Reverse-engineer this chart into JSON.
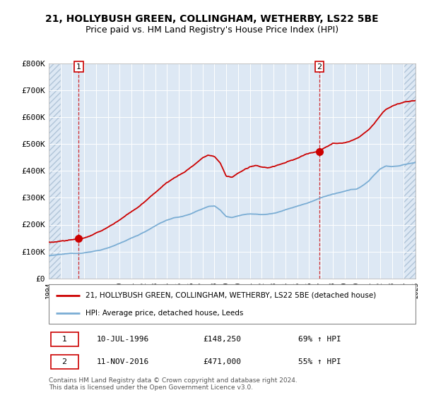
{
  "title": "21, HOLLYBUSH GREEN, COLLINGHAM, WETHERBY, LS22 5BE",
  "subtitle": "Price paid vs. HM Land Registry's House Price Index (HPI)",
  "legend_line1": "21, HOLLYBUSH GREEN, COLLINGHAM, WETHERBY, LS22 5BE (detached house)",
  "legend_line2": "HPI: Average price, detached house, Leeds",
  "note1_num": "1",
  "note1_date": "10-JUL-1996",
  "note1_price": "£148,250",
  "note1_hpi": "69% ↑ HPI",
  "note2_num": "2",
  "note2_date": "11-NOV-2016",
  "note2_price": "£471,000",
  "note2_hpi": "55% ↑ HPI",
  "copyright": "Contains HM Land Registry data © Crown copyright and database right 2024.\nThis data is licensed under the Open Government Licence v3.0.",
  "sale_color": "#cc0000",
  "hpi_color": "#7aadd4",
  "bg_color": "#dde8f4",
  "ylim": [
    0,
    800000
  ],
  "yticks": [
    0,
    100000,
    200000,
    300000,
    400000,
    500000,
    600000,
    700000,
    800000
  ],
  "ytick_labels": [
    "£0",
    "£100K",
    "£200K",
    "£300K",
    "£400K",
    "£500K",
    "£600K",
    "£700K",
    "£800K"
  ],
  "sale1_year": 1996.53,
  "sale1_price": 148250,
  "sale2_year": 2016.87,
  "sale2_price": 471000,
  "xmin": 1994,
  "xmax": 2025
}
